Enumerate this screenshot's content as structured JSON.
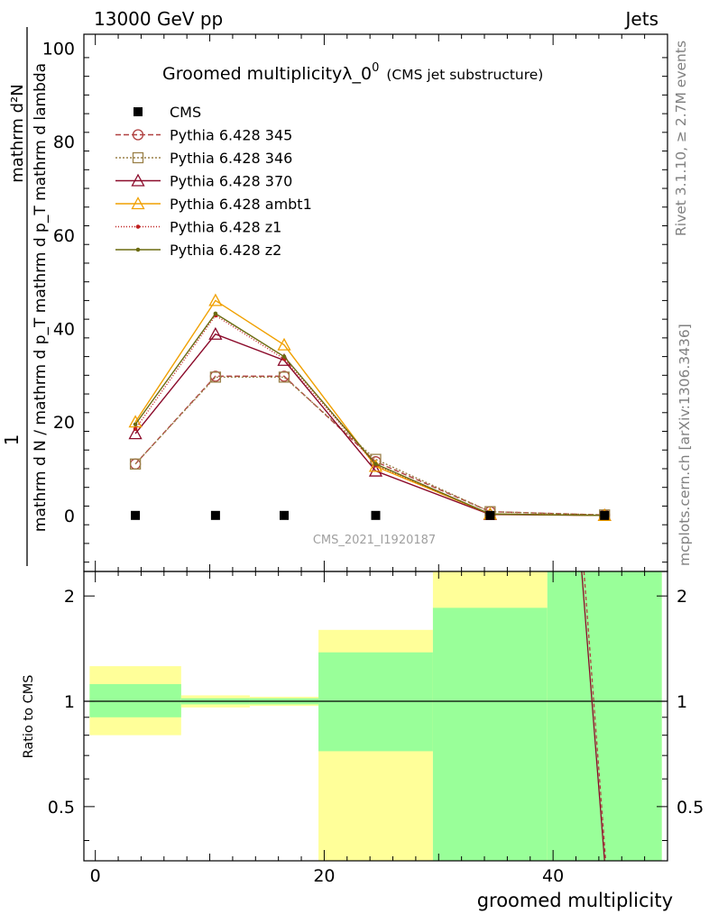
{
  "header": {
    "left": "13000 GeV pp",
    "right": "Jets",
    "rivet": "Rivet 3.1.10, ≥ 2.7M events",
    "mcplots": "mcplots.cern.ch [arXiv:1306.3436]",
    "watermark": "CMS_2021_I1920187"
  },
  "chart_data": {
    "type": "line",
    "title_main": "Groomed multiplicityλ_0",
    "title_sup": "0",
    "title_sub": "(CMS jet substructure)",
    "ylabel_top": "1",
    "ylabel_num": "mathrm d²N",
    "ylabel_den": "mathrm d N / mathrm d p_T mathrm d p_T mathrm d lambda",
    "xlabel": "groomed multiplicity",
    "ratio_ylabel": "Ratio to CMS",
    "xlim": [
      -1,
      50
    ],
    "ylim": [
      -12,
      103
    ],
    "ratio_ylim": [
      0.35,
      2.35
    ],
    "x_ticks": [
      "0",
      "20",
      "40"
    ],
    "y_ticks": [
      "0",
      "20",
      "40",
      "60",
      "80",
      "100"
    ],
    "ratio_ticks": [
      "0.5",
      "1",
      "2"
    ],
    "x": [
      3.5,
      10.5,
      16.5,
      24.5,
      34.5,
      44.5
    ],
    "cms": {
      "name": "CMS",
      "values": [
        0,
        0,
        0,
        0,
        0,
        0
      ]
    },
    "series": [
      {
        "name": "Pythia 6.428 345",
        "color": "#b04040",
        "dash": "6,3",
        "marker": "circle",
        "values": [
          11.0,
          29.8,
          29.8,
          11.5,
          0.8,
          0.1
        ]
      },
      {
        "name": "Pythia 6.428 346",
        "color": "#9a8048",
        "dash": "2,2",
        "marker": "square",
        "values": [
          11.0,
          29.6,
          29.6,
          12.0,
          0.8,
          0.1
        ]
      },
      {
        "name": "Pythia 6.428 370",
        "color": "#8b0a2a",
        "dash": "",
        "marker": "triangle",
        "values": [
          17.5,
          38.8,
          33.2,
          9.5,
          0.2,
          0.0
        ]
      },
      {
        "name": "Pythia 6.428 ambt1",
        "color": "#f0a000",
        "dash": "",
        "marker": "triangle",
        "values": [
          20.0,
          46.0,
          36.5,
          10.5,
          0.3,
          0.0
        ]
      },
      {
        "name": "Pythia 6.428 z1",
        "color": "#c02020",
        "dash": "1,2",
        "marker": "dot",
        "values": [
          18.5,
          42.8,
          33.5,
          10.8,
          0.3,
          0.0
        ]
      },
      {
        "name": "Pythia 6.428 z2",
        "color": "#6b6b10",
        "dash": "",
        "marker": "dot",
        "values": [
          19.5,
          43.2,
          34.0,
          11.0,
          0.3,
          0.0
        ]
      }
    ],
    "ratio_bands": [
      {
        "x": [
          -0.5,
          7.5
        ],
        "green": [
          0.9,
          1.12
        ],
        "yellow": [
          0.8,
          1.26
        ]
      },
      {
        "x": [
          7.5,
          13.5
        ],
        "green": [
          0.98,
          1.02
        ],
        "yellow": [
          0.96,
          1.04
        ]
      },
      {
        "x": [
          13.5,
          19.5
        ],
        "green": [
          0.98,
          1.02
        ],
        "yellow": [
          0.97,
          1.03
        ]
      },
      {
        "x": [
          19.5,
          29.5
        ],
        "green": [
          0.72,
          1.38
        ],
        "yellow": [
          0.35,
          1.6
        ]
      },
      {
        "x": [
          29.5,
          39.5
        ],
        "green": [
          0.35,
          1.85
        ],
        "yellow": [
          0.35,
          2.35
        ]
      },
      {
        "x": [
          39.5,
          49.5
        ],
        "green": [
          0.35,
          2.35
        ],
        "yellow": [
          0.35,
          2.35
        ]
      }
    ],
    "ratio_lines": [
      {
        "color": "#8b0a2a",
        "dash": "",
        "from": [
          42.5,
          2.35
        ],
        "to": [
          44.5,
          0.35
        ]
      },
      {
        "color": "#b04040",
        "dash": "4,3",
        "from": [
          42.7,
          2.35
        ],
        "to": [
          44.6,
          0.35
        ]
      }
    ]
  }
}
